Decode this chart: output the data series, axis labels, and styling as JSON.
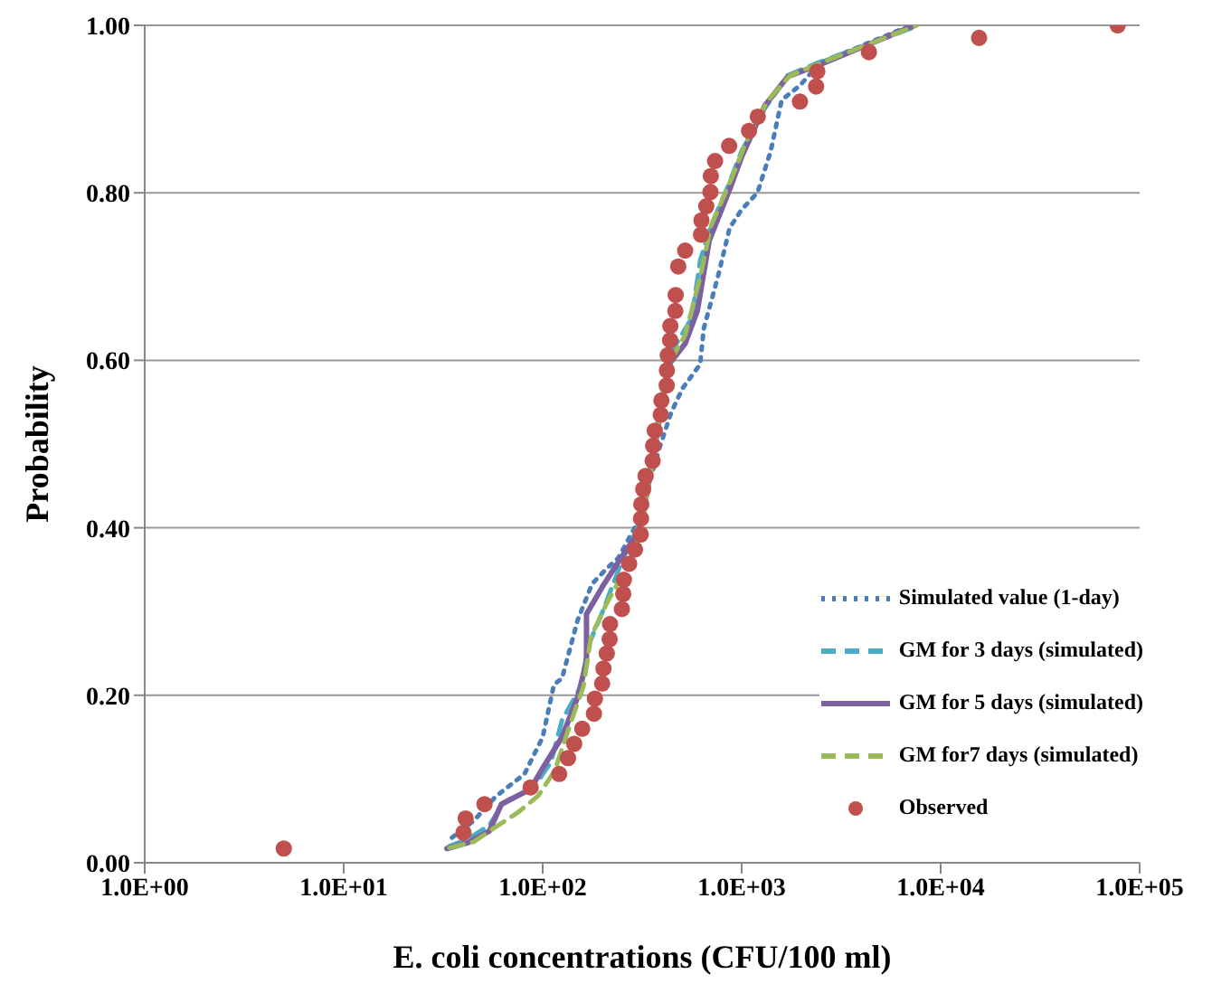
{
  "chart_data": {
    "type": "line",
    "xlabel": "E. coli concentrations (CFU/100 ml)",
    "ylabel": "Probability",
    "log": "x",
    "grid": "y",
    "legend": "bottom right",
    "xlim": [
      1,
      100000
    ],
    "xticks": [
      {
        "value": 1,
        "label": "1.0E+00"
      },
      {
        "value": 10,
        "label": "1.0E+01"
      },
      {
        "value": 100,
        "label": "1.0E+02"
      },
      {
        "value": 1000,
        "label": "1.0E+03"
      },
      {
        "value": 10000,
        "label": "1.0E+04"
      },
      {
        "value": 100000,
        "label": "1.0E+05"
      }
    ],
    "ylim": [
      0,
      1
    ],
    "yticks": [
      {
        "value": 0,
        "label": "0.00"
      },
      {
        "value": 0.2,
        "label": "0.20"
      },
      {
        "value": 0.4,
        "label": "0.40"
      },
      {
        "value": 0.6,
        "label": "0.60"
      },
      {
        "value": 0.8,
        "label": "0.80"
      },
      {
        "value": 1,
        "label": "1.00"
      }
    ],
    "series": [
      {
        "name": "Simulated value (1-day)",
        "color": "#4a7ebb",
        "line_style": "dotted",
        "marker": "none",
        "x": [
          35,
          45,
          58,
          81,
          100,
          114,
          125,
          150,
          177,
          209,
          240,
          290,
          340,
          387,
          443,
          506,
          618,
          645,
          760,
          870,
          1000,
          1200,
          1400,
          1590,
          1960,
          2470,
          7100
        ],
        "values": [
          0.03,
          0.05,
          0.079,
          0.106,
          0.15,
          0.213,
          0.22,
          0.29,
          0.333,
          0.351,
          0.364,
          0.4,
          0.45,
          0.496,
          0.538,
          0.567,
          0.595,
          0.638,
          0.7,
          0.758,
          0.78,
          0.8,
          0.85,
          0.911,
          0.928,
          0.955,
          1.0
        ]
      },
      {
        "name": "GM for 3 days (simulated)",
        "color": "#4bacc6",
        "line_style": "dashed",
        "marker": "none",
        "x": [
          34,
          42,
          54,
          63,
          90,
          110,
          125,
          155,
          170,
          200,
          250,
          300,
          330,
          360,
          395,
          430,
          470,
          560,
          620,
          700,
          860,
          1000,
          1300,
          1700,
          2400,
          7800
        ],
        "values": [
          0.02,
          0.028,
          0.045,
          0.07,
          0.09,
          0.12,
          0.17,
          0.21,
          0.26,
          0.3,
          0.36,
          0.4,
          0.44,
          0.5,
          0.55,
          0.6,
          0.62,
          0.65,
          0.72,
          0.76,
          0.81,
          0.85,
          0.9,
          0.94,
          0.955,
          1.0
        ]
      },
      {
        "name": "GM for 5 days (simulated)",
        "color": "#7d60a0",
        "line_style": "solid",
        "marker": "none",
        "x": [
          33,
          42,
          54,
          62,
          87,
          100,
          125,
          150,
          166,
          166,
          200,
          254,
          305,
          335,
          366,
          400,
          430,
          520,
          600,
          687,
          870,
          1000,
          1306,
          1710,
          2470,
          7400
        ],
        "values": [
          0.017,
          0.024,
          0.038,
          0.07,
          0.088,
          0.113,
          0.15,
          0.198,
          0.24,
          0.297,
          0.33,
          0.368,
          0.396,
          0.443,
          0.496,
          0.553,
          0.595,
          0.62,
          0.66,
          0.743,
          0.804,
          0.843,
          0.904,
          0.939,
          0.953,
          1.0
        ]
      },
      {
        "name": "GM for7 days (simulated)",
        "color": "#9bbb59",
        "line_style": "dashed",
        "marker": "none",
        "x": [
          34,
          45,
          60,
          75,
          95,
          115,
          135,
          160,
          175,
          210,
          260,
          310,
          340,
          370,
          400,
          440,
          520,
          620,
          700,
          900,
          1050,
          1350,
          1750,
          2500,
          7600
        ],
        "values": [
          0.018,
          0.025,
          0.045,
          0.06,
          0.08,
          0.11,
          0.16,
          0.21,
          0.27,
          0.31,
          0.35,
          0.39,
          0.45,
          0.5,
          0.56,
          0.6,
          0.63,
          0.7,
          0.76,
          0.82,
          0.86,
          0.91,
          0.94,
          0.955,
          1.0
        ]
      },
      {
        "name": "Observed",
        "type": "scatter",
        "color": "#c0504d",
        "marker": "circle",
        "x": [
          5,
          40,
          41,
          51,
          87,
          121,
          134,
          144,
          158,
          181,
          183,
          199,
          202,
          210,
          217,
          218,
          250,
          254,
          256,
          272,
          291,
          311,
          312,
          313,
          320,
          329,
          357,
          359,
          366,
          392,
          395,
          420,
          421,
          425,
          437,
          438,
          464,
          466,
          480,
          520,
          625,
          628,
          664,
          697,
          700,
          735,
          865,
          1089,
          1205,
          1963,
          2366,
          2400,
          4360,
          15600,
          77600
        ],
        "values": [
          0.017,
          0.036,
          0.053,
          0.07,
          0.09,
          0.106,
          0.125,
          0.142,
          0.16,
          0.178,
          0.196,
          0.214,
          0.232,
          0.25,
          0.267,
          0.285,
          0.303,
          0.321,
          0.338,
          0.357,
          0.374,
          0.392,
          0.411,
          0.428,
          0.446,
          0.462,
          0.48,
          0.498,
          0.516,
          0.535,
          0.552,
          0.57,
          0.588,
          0.606,
          0.624,
          0.641,
          0.659,
          0.678,
          0.712,
          0.731,
          0.75,
          0.767,
          0.784,
          0.801,
          0.82,
          0.838,
          0.856,
          0.874,
          0.891,
          0.909,
          0.927,
          0.945,
          0.968,
          0.985,
          1.0
        ]
      }
    ]
  }
}
